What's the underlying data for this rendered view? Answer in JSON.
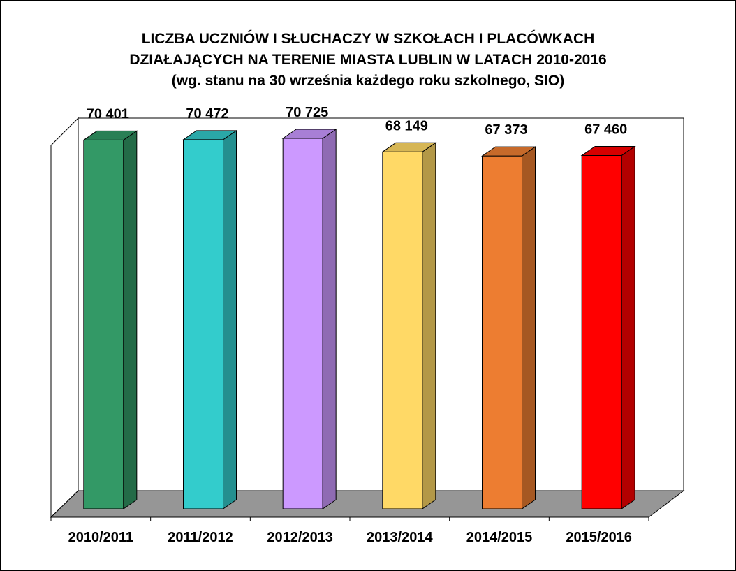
{
  "chart_data": {
    "type": "bar",
    "title_lines": [
      "LICZBA UCZNIÓW I SŁUCHACZY W SZKOŁACH I PLACÓWKACH",
      "DZIAŁAJĄCYCH  NA TERENIE MIASTA LUBLIN W LATACH 2010-2016",
      "(wg. stanu na 30 września każdego roku szkolnego, SIO)"
    ],
    "categories": [
      "2010/2011",
      "2011/2012",
      "2012/2013",
      "2013/2014",
      "2014/2015",
      "2015/2016"
    ],
    "values": [
      70401,
      70472,
      70725,
      68149,
      67373,
      67460
    ],
    "value_labels": [
      "70 401",
      "70 472",
      "70 725",
      "68 149",
      "67 373",
      "67 460"
    ],
    "bar_colors": [
      {
        "front": "#339966",
        "side": "#236B47",
        "top": "#2A7F55"
      },
      {
        "front": "#33CCCC",
        "side": "#248F8F",
        "top": "#2AA8A8"
      },
      {
        "front": "#CC99FF",
        "side": "#8F6BB3",
        "top": "#A87FD6"
      },
      {
        "front": "#FFD966",
        "side": "#B39847",
        "top": "#D6B655"
      },
      {
        "front": "#ED7D31",
        "side": "#A65822",
        "top": "#C76A2A"
      },
      {
        "front": "#FF0000",
        "side": "#B30000",
        "top": "#D60000"
      }
    ],
    "floor_color": "#969696",
    "xlabel": "",
    "ylabel": "",
    "grid": false,
    "legend": "none"
  }
}
